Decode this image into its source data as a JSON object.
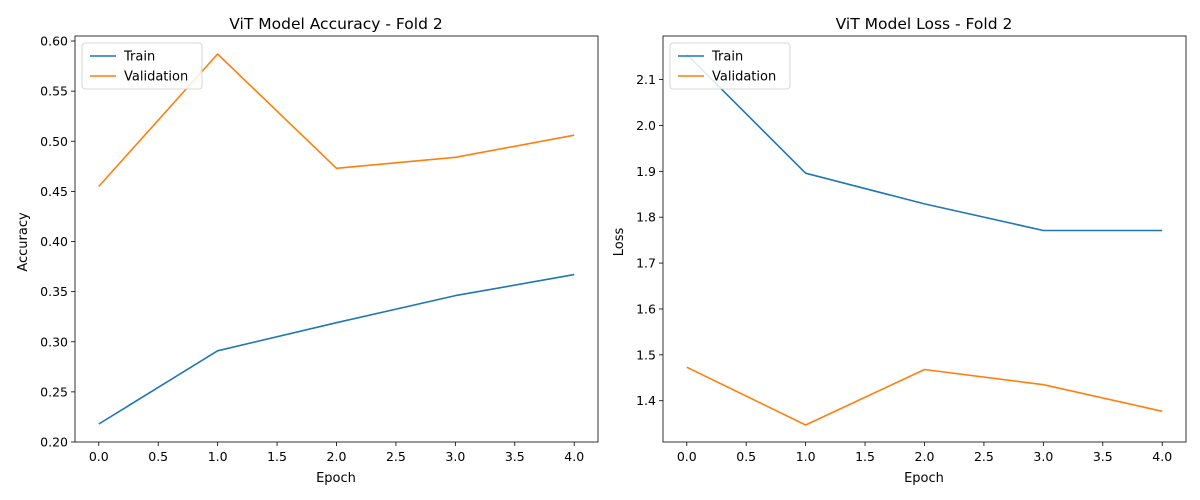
{
  "chart_data": [
    {
      "type": "line",
      "title": "ViT Model Accuracy - Fold 2",
      "xlabel": "Epoch",
      "ylabel": "Accuracy",
      "x": [
        0,
        1,
        2,
        3,
        4
      ],
      "xlim": [
        -0.2,
        4.2
      ],
      "ylim": [
        0.2,
        0.605
      ],
      "xticks": [
        "0.0",
        "0.5",
        "1.0",
        "1.5",
        "2.0",
        "2.5",
        "3.0",
        "3.5",
        "4.0"
      ],
      "yticks": [
        "0.20",
        "0.25",
        "0.30",
        "0.35",
        "0.40",
        "0.45",
        "0.50",
        "0.55",
        "0.60"
      ],
      "legend": "upper-left",
      "series": [
        {
          "name": "Train",
          "color": "#1f77b4",
          "values": [
            0.218,
            0.291,
            0.319,
            0.346,
            0.367
          ]
        },
        {
          "name": "Validation",
          "color": "#ff7f0e",
          "values": [
            0.455,
            0.587,
            0.473,
            0.484,
            0.506
          ]
        }
      ]
    },
    {
      "type": "line",
      "title": "ViT Model Loss - Fold 2",
      "xlabel": "Epoch",
      "ylabel": "Loss",
      "x": [
        0,
        1,
        2,
        3,
        4
      ],
      "xlim": [
        -0.2,
        4.2
      ],
      "ylim": [
        1.31,
        2.195
      ],
      "xticks": [
        "0.0",
        "0.5",
        "1.0",
        "1.5",
        "2.0",
        "2.5",
        "3.0",
        "3.5",
        "4.0"
      ],
      "yticks": [
        "1.4",
        "1.5",
        "1.6",
        "1.7",
        "1.8",
        "1.9",
        "2.0",
        "2.1"
      ],
      "legend": "upper-left",
      "series": [
        {
          "name": "Train",
          "color": "#1f77b4",
          "values": [
            2.155,
            1.896,
            1.829,
            1.771,
            1.771
          ]
        },
        {
          "name": "Validation",
          "color": "#ff7f0e",
          "values": [
            1.473,
            1.347,
            1.468,
            1.435,
            1.377
          ]
        }
      ]
    }
  ]
}
